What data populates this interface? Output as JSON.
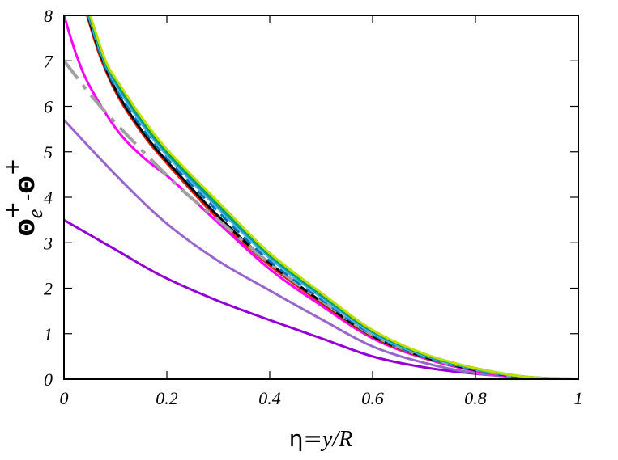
{
  "chart_data": {
    "type": "line",
    "xlabel": "η=y/R",
    "xlabel_parts": {
      "prefix": "η=",
      "italic": "y/R"
    },
    "ylabel": "Θe+ - Θ+",
    "ylabel_parts": {
      "theta1": "Θ",
      "sub": "e",
      "sup1": "+",
      "minus": "-",
      "theta2": "Θ",
      "sup2": "+"
    },
    "xlim": [
      0,
      1
    ],
    "ylim": [
      0,
      8
    ],
    "xticks": [
      "0",
      "0.2",
      "0.4",
      "0.6",
      "0.8",
      "1"
    ],
    "yticks": [
      "0",
      "1",
      "2",
      "3",
      "4",
      "5",
      "6",
      "7",
      "8"
    ],
    "grid": false,
    "legend": "none",
    "series": [
      {
        "color": "#9400d3",
        "dash": "solid",
        "points": [
          [
            0,
            3.5
          ],
          [
            0.1,
            2.85
          ],
          [
            0.19,
            2.27
          ],
          [
            0.3,
            1.72
          ],
          [
            0.4,
            1.3
          ],
          [
            0.5,
            0.9
          ],
          [
            0.6,
            0.5
          ],
          [
            0.7,
            0.26
          ],
          [
            0.8,
            0.12
          ],
          [
            0.9,
            0.04
          ],
          [
            1,
            0
          ]
        ]
      },
      {
        "color": "#9966cc",
        "dash": "solid",
        "points": [
          [
            0,
            5.7
          ],
          [
            0.105,
            4.44
          ],
          [
            0.2,
            3.42
          ],
          [
            0.3,
            2.6
          ],
          [
            0.4,
            1.95
          ],
          [
            0.5,
            1.32
          ],
          [
            0.6,
            0.72
          ],
          [
            0.7,
            0.36
          ],
          [
            0.8,
            0.13
          ],
          [
            0.9,
            0.03
          ],
          [
            1,
            0
          ]
        ]
      },
      {
        "color": "#ff00ff",
        "dash": "solid",
        "points": [
          [
            0,
            8
          ],
          [
            0.025,
            7.1
          ],
          [
            0.052,
            6.4
          ],
          [
            0.105,
            5.45
          ],
          [
            0.157,
            4.85
          ],
          [
            0.21,
            4.38
          ],
          [
            0.294,
            3.5
          ],
          [
            0.4,
            2.42
          ],
          [
            0.5,
            1.62
          ],
          [
            0.6,
            0.9
          ],
          [
            0.7,
            0.46
          ],
          [
            0.8,
            0.18
          ],
          [
            0.9,
            0.03
          ],
          [
            1,
            0
          ]
        ]
      },
      {
        "color": "#e8200c",
        "dash": "solid",
        "points": [
          [
            0.045,
            8
          ],
          [
            0.07,
            7.1
          ],
          [
            0.105,
            6.22
          ],
          [
            0.157,
            5.33
          ],
          [
            0.21,
            4.62
          ],
          [
            0.3,
            3.52
          ],
          [
            0.4,
            2.5
          ],
          [
            0.5,
            1.68
          ],
          [
            0.6,
            0.93
          ],
          [
            0.7,
            0.48
          ],
          [
            0.8,
            0.2
          ],
          [
            0.9,
            0.04
          ],
          [
            1,
            0
          ]
        ]
      },
      {
        "color": "#000000",
        "dash": "solid",
        "points": [
          [
            0.046,
            8
          ],
          [
            0.072,
            7.1
          ],
          [
            0.105,
            6.27
          ],
          [
            0.157,
            5.38
          ],
          [
            0.21,
            4.67
          ],
          [
            0.302,
            3.56
          ],
          [
            0.4,
            2.55
          ],
          [
            0.5,
            1.71
          ],
          [
            0.6,
            0.95
          ],
          [
            0.7,
            0.49
          ],
          [
            0.8,
            0.2
          ],
          [
            0.9,
            0.04
          ],
          [
            1,
            0
          ]
        ]
      },
      {
        "color": "#a0a0a0",
        "dash": "longdash",
        "points": [
          [
            0,
            7
          ],
          [
            0.063,
            6.1
          ],
          [
            0.131,
            5.27
          ],
          [
            0.226,
            4.2
          ],
          [
            0.3,
            3.5
          ],
          [
            0.4,
            2.55
          ],
          [
            0.5,
            1.73
          ],
          [
            0.6,
            0.97
          ],
          [
            0.7,
            0.5
          ],
          [
            0.8,
            0.21
          ],
          [
            0.9,
            0.04
          ],
          [
            1,
            0
          ]
        ]
      },
      {
        "color": "#0072b2",
        "dash": "dash",
        "points": [
          [
            0.047,
            8
          ],
          [
            0.074,
            7.05
          ],
          [
            0.105,
            6.33
          ],
          [
            0.157,
            5.45
          ],
          [
            0.21,
            4.74
          ],
          [
            0.305,
            3.62
          ],
          [
            0.4,
            2.6
          ],
          [
            0.5,
            1.76
          ],
          [
            0.6,
            0.98
          ],
          [
            0.7,
            0.5
          ],
          [
            0.8,
            0.21
          ],
          [
            0.9,
            0.045
          ],
          [
            1,
            0
          ]
        ]
      },
      {
        "color": "#56b4e9",
        "dash": "solid",
        "points": [
          [
            0.048,
            8
          ],
          [
            0.076,
            7.05
          ],
          [
            0.105,
            6.4
          ],
          [
            0.157,
            5.52
          ],
          [
            0.21,
            4.8
          ],
          [
            0.307,
            3.67
          ],
          [
            0.4,
            2.66
          ],
          [
            0.5,
            1.8
          ],
          [
            0.6,
            1.01
          ],
          [
            0.7,
            0.52
          ],
          [
            0.8,
            0.22
          ],
          [
            0.9,
            0.045
          ],
          [
            1,
            0
          ]
        ]
      },
      {
        "color": "#009e9e",
        "dash": "solid",
        "points": [
          [
            0.049,
            8
          ],
          [
            0.078,
            7.03
          ],
          [
            0.105,
            6.45
          ],
          [
            0.157,
            5.58
          ],
          [
            0.21,
            4.85
          ],
          [
            0.308,
            3.71
          ],
          [
            0.4,
            2.71
          ],
          [
            0.5,
            1.84
          ],
          [
            0.6,
            1.04
          ],
          [
            0.7,
            0.54
          ],
          [
            0.8,
            0.23
          ],
          [
            0.9,
            0.05
          ],
          [
            1,
            0
          ]
        ]
      },
      {
        "color": "#00a050",
        "dash": "solid",
        "points": [
          [
            0.05,
            8
          ],
          [
            0.08,
            7.0
          ],
          [
            0.105,
            6.5
          ],
          [
            0.157,
            5.63
          ],
          [
            0.21,
            4.9
          ],
          [
            0.31,
            3.75
          ],
          [
            0.4,
            2.75
          ],
          [
            0.5,
            1.88
          ],
          [
            0.6,
            1.07
          ],
          [
            0.7,
            0.55
          ],
          [
            0.8,
            0.24
          ],
          [
            0.9,
            0.05
          ],
          [
            1,
            0
          ]
        ]
      },
      {
        "color": "#bde000",
        "dash": "solid",
        "points": [
          [
            0.051,
            8
          ],
          [
            0.081,
            7.0
          ],
          [
            0.106,
            6.52
          ],
          [
            0.158,
            5.65
          ],
          [
            0.211,
            4.92
          ],
          [
            0.311,
            3.77
          ],
          [
            0.4,
            2.77
          ],
          [
            0.5,
            1.9
          ],
          [
            0.6,
            1.08
          ],
          [
            0.7,
            0.56
          ],
          [
            0.8,
            0.24
          ],
          [
            0.9,
            0.05
          ],
          [
            1,
            0
          ]
        ]
      }
    ]
  }
}
